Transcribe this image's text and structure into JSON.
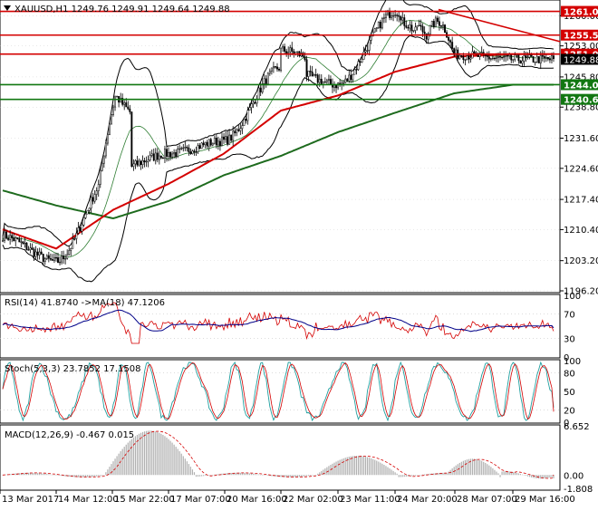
{
  "colors": {
    "background": "#ffffff",
    "grid": "#c8c8c8",
    "candle": "#000000",
    "ema_long": "#1e6b1e",
    "ema_mid": "#d40000",
    "bands": "#000000",
    "level_red": "#d40000",
    "level_green": "#117711",
    "label_red": "#d40000",
    "label_green": "#117711",
    "label_current": "#000000",
    "rsi_line": "#d40000",
    "rsi_ma": "#000088",
    "stoch_main": "#20a0a0",
    "stoch_signal": "#d40000",
    "macd_hist": "#b0b0b0",
    "macd_signal": "#d40000"
  },
  "icons": {
    "symbol_marker": "triangle-down-icon"
  },
  "chart_data": [
    {
      "type": "candlestick",
      "title": "XAUUSD,H1  1249.76 1249.91 1249.64 1249.88",
      "ylim": [
        1196.2,
        1262.8
      ],
      "y_ticks": [
        "1196.20",
        "1203.20",
        "1210.40",
        "1217.40",
        "1224.60",
        "1231.60",
        "1238.80",
        "1245.80",
        "1253.00",
        "1260.00"
      ],
      "price_levels": [
        {
          "label": "1261.00",
          "value": 1261.0,
          "color": "red"
        },
        {
          "label": "1255.50",
          "value": 1255.5,
          "color": "red"
        },
        {
          "label": "1251.09",
          "value": 1251.09,
          "color": "red"
        },
        {
          "label": "1244.00",
          "value": 1244.0,
          "color": "green"
        },
        {
          "label": "1240.60",
          "value": 1240.6,
          "color": "green"
        }
      ],
      "current_price": {
        "label": "1249.88",
        "value": 1249.88
      },
      "trendline": {
        "from_label": "24 Mar 20:00",
        "from_value": 1261.0,
        "to_label": "29 Mar 16:00",
        "to_value": 1254.0
      },
      "anchors": [
        {
          "x": "13 Mar 2017",
          "value": 1209.0
        },
        {
          "x": "14 Mar 12:00",
          "value": 1203.0
        },
        {
          "x": "15 Mar 22:00",
          "value": 1224.0
        },
        {
          "x": "17 Mar 07:00",
          "value": 1228.0
        },
        {
          "x": "20 Mar 16:00",
          "value": 1231.0
        },
        {
          "x": "22 Mar 02:00",
          "value": 1248.0
        },
        {
          "x": "23 Mar 11:00",
          "value": 1244.0
        },
        {
          "x": "24 Mar 20:00",
          "value": 1261.0
        },
        {
          "x": "28 Mar 07:00",
          "value": 1251.0
        },
        {
          "x": "29 Mar 16:00",
          "value": 1249.88
        }
      ],
      "moving_averages": [
        {
          "color": "green",
          "points": [
            1219.6,
            1216.0,
            1213.0,
            1217.0,
            1223.0,
            1227.5,
            1233.0,
            1237.5,
            1242.0,
            1244.0
          ]
        },
        {
          "color": "red",
          "points": [
            1210.6,
            1206.0,
            1215.0,
            1221.0,
            1228.0,
            1238.0,
            1241.5,
            1247.0,
            1250.5,
            1251.09
          ]
        }
      ]
    },
    {
      "type": "line",
      "title": "RSI(14) 41.8740 ->MA(18) 47.1206",
      "ylim": [
        0,
        100
      ],
      "y_ticks": [
        "100",
        "70",
        "30",
        "0"
      ],
      "series": [
        {
          "name": "RSI(14)",
          "last": 41.874
        },
        {
          "name": "MA(18)",
          "last": 47.1206
        }
      ]
    },
    {
      "type": "line",
      "title": "Stoch(5,3,3) 23.7852 17.1508",
      "ylim": [
        0,
        100
      ],
      "y_ticks": [
        "100",
        "80",
        "50",
        "20",
        "0"
      ],
      "series": [
        {
          "name": "Stoch main",
          "last": 23.7852
        },
        {
          "name": "Stoch signal",
          "last": 17.1508
        }
      ]
    },
    {
      "type": "bar",
      "title": "MACD(12,26,9) -0.467 0.015",
      "ylim": [
        -1.808,
        6.652
      ],
      "y_ticks": [
        "6.652",
        "0.00",
        "-1.808"
      ],
      "series": [
        {
          "name": "MACD",
          "last": -0.467
        },
        {
          "name": "Signal",
          "last": 0.015
        }
      ]
    }
  ],
  "x_axis": {
    "labels": [
      "13 Mar 2017",
      "14 Mar 12:00",
      "15 Mar 22:00",
      "17 Mar 07:00",
      "20 Mar 16:00",
      "22 Mar 02:00",
      "23 Mar 11:00",
      "24 Mar 20:00",
      "28 Mar 07:00",
      "29 Mar 16:00"
    ]
  }
}
